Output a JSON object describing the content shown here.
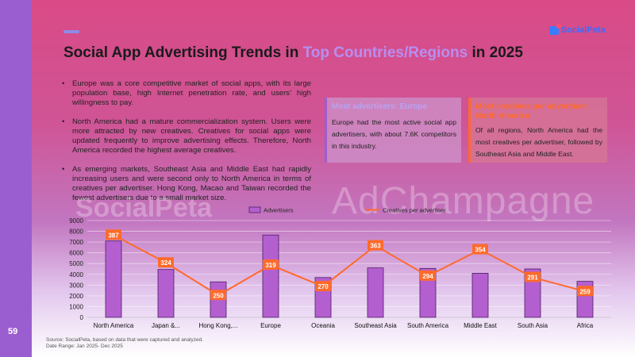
{
  "page_number": "59",
  "logo": {
    "text": "SocialPeta"
  },
  "title": {
    "prefix": "Social App Advertising Trends in ",
    "highlight": "Top Countries/Regions",
    "suffix": " in 2025"
  },
  "bullets": [
    "Europe was a core competitive market of social apps, with its large population base, high Internet penetration rate, and users’ high willingness to pay.",
    "North America had a mature commercialization system. Users were more attracted by new creatives. Creatives for social apps were updated frequently to improve advertising effects. Therefore, North America recorded the highest average creatives.",
    "As emerging markets, Southeast Asia and Middle East had rapidly increasing users and were second only to North America in terms of creatives per advertiser. Hong Kong, Macao and Taiwan recorded the fewest advertisers due to a small market size."
  ],
  "cards": [
    {
      "title": "Most advertisers: Europe",
      "body": "Europe had the most active social app advertisers, with about 7.6K competitors in this industry."
    },
    {
      "title": "Most creatives per advertiser: North America",
      "body": "Of all regions, North America had the most creatives per advertiser, followed by Southeast Asia and Middle East."
    }
  ],
  "watermarks": {
    "left": "SocialPeta",
    "right": "AdChampagne"
  },
  "chart_data": {
    "type": "bar",
    "categories": [
      "North America",
      "Japan &...",
      "Hong Kong,...",
      "Europe",
      "Oceania",
      "Southeast Asia",
      "South America",
      "Middle East",
      "South Asia",
      "Africa"
    ],
    "series": [
      {
        "name": "Advertisers",
        "type": "bar",
        "values": [
          7100,
          4450,
          3300,
          7650,
          3700,
          4600,
          4550,
          4100,
          4500,
          3350
        ]
      },
      {
        "name": "Creatives per advertiser",
        "type": "line",
        "values": [
          387,
          324,
          250,
          319,
          270,
          363,
          294,
          354,
          291,
          259
        ]
      }
    ],
    "y_ticks": [
      "0",
      "1000",
      "2000",
      "3000",
      "4000",
      "5000",
      "6000",
      "7000",
      "8000",
      "9000"
    ],
    "ylim": [
      0,
      9000
    ],
    "line_range": [
      200,
      420
    ],
    "grid": true,
    "legend": "top",
    "colors": {
      "bar": "#b45fd0",
      "bar_stroke": "#4b1f63",
      "line": "#ff6a2b",
      "label_bg": "#ff6a2b"
    }
  },
  "footer": {
    "source": "Source: SocialPeta, based on data that were captured and analyzed.",
    "range": "Date Range: Jan 2025- Dec 2025"
  }
}
